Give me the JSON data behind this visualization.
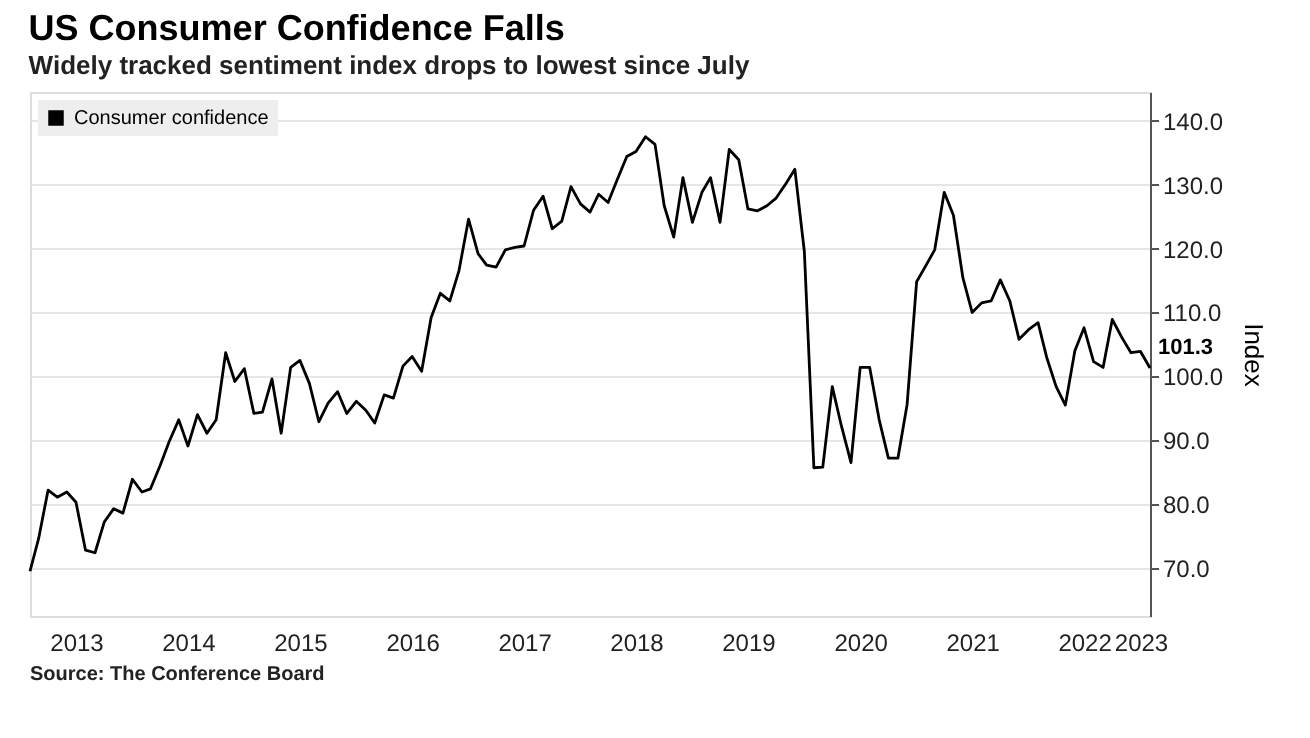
{
  "chart_data": {
    "type": "line",
    "title": "US Consumer Confidence Falls",
    "subtitle": "Widely tracked sentiment index drops to lowest since July",
    "ylabel": "Index",
    "xlim": [
      "2013-02-01",
      "2023-02-01"
    ],
    "xticks": [
      {
        "value": "2013-07-01",
        "label": "2013"
      },
      {
        "value": "2014-07-01",
        "label": "2014"
      },
      {
        "value": "2015-07-01",
        "label": "2015"
      },
      {
        "value": "2016-07-01",
        "label": "2016"
      },
      {
        "value": "2017-07-01",
        "label": "2017"
      },
      {
        "value": "2018-07-01",
        "label": "2018"
      },
      {
        "value": "2019-07-01",
        "label": "2019"
      },
      {
        "value": "2020-07-01",
        "label": "2020"
      },
      {
        "value": "2021-07-01",
        "label": "2021"
      },
      {
        "value": "2022-07-01",
        "label": "2022"
      },
      {
        "value": "2023-01-01",
        "label": "2023"
      }
    ],
    "ylim": [
      62.5,
      144.5
    ],
    "yticks": [
      {
        "value": 70,
        "label": "70.0"
      },
      {
        "value": 80,
        "label": "80.0"
      },
      {
        "value": 90,
        "label": "90.0"
      },
      {
        "value": 100,
        "label": "100.0"
      },
      {
        "value": 110,
        "label": "110.0"
      },
      {
        "value": 120,
        "label": "120.0"
      },
      {
        "value": 130,
        "label": "130.0"
      },
      {
        "value": 140,
        "label": "140.0"
      }
    ],
    "x": [
      "2013-02",
      "2013-03",
      "2013-04",
      "2013-05",
      "2013-06",
      "2013-07",
      "2013-08",
      "2013-09",
      "2013-10",
      "2013-11",
      "2013-12",
      "2014-01",
      "2014-02",
      "2014-03",
      "2014-04",
      "2014-05",
      "2014-06",
      "2014-07",
      "2014-08",
      "2014-09",
      "2014-10",
      "2014-11",
      "2014-12",
      "2015-01",
      "2015-02",
      "2015-03",
      "2015-04",
      "2015-05",
      "2015-06",
      "2015-07",
      "2015-08",
      "2015-09",
      "2015-10",
      "2015-11",
      "2015-12",
      "2016-01",
      "2016-02",
      "2016-03",
      "2016-04",
      "2016-05",
      "2016-06",
      "2016-07",
      "2016-08",
      "2016-09",
      "2016-10",
      "2016-11",
      "2016-12",
      "2017-01",
      "2017-02",
      "2017-03",
      "2017-04",
      "2017-05",
      "2017-06",
      "2017-07",
      "2017-08",
      "2017-09",
      "2017-10",
      "2017-11",
      "2017-12",
      "2018-01",
      "2018-02",
      "2018-03",
      "2018-04",
      "2018-05",
      "2018-06",
      "2018-07",
      "2018-08",
      "2018-09",
      "2018-10",
      "2018-11",
      "2018-12",
      "2019-01",
      "2019-02",
      "2019-03",
      "2019-04",
      "2019-05",
      "2019-06",
      "2019-07",
      "2019-08",
      "2019-09",
      "2019-10",
      "2019-11",
      "2019-12",
      "2020-01",
      "2020-02",
      "2020-03",
      "2020-04",
      "2020-05",
      "2020-06",
      "2020-07",
      "2020-08",
      "2020-09",
      "2020-10",
      "2020-11",
      "2020-12",
      "2021-01",
      "2021-02",
      "2021-03",
      "2021-04",
      "2021-05",
      "2021-06",
      "2021-07",
      "2021-08",
      "2021-09",
      "2021-10",
      "2021-11",
      "2021-12",
      "2022-01",
      "2022-02",
      "2022-03",
      "2022-04",
      "2022-05",
      "2022-06",
      "2022-07",
      "2022-08",
      "2022-09",
      "2022-10",
      "2022-11",
      "2022-12",
      "2023-01",
      "2023-02"
    ],
    "grid": "y",
    "legend": "top left",
    "marker": "none",
    "line_style": "solid",
    "series": [
      {
        "name": "Consumer confidence",
        "color": "#000000",
        "values": [
          69.5,
          74.6,
          82.2,
          81.1,
          81.9,
          80.3,
          72.8,
          72.4,
          77.2,
          79.3,
          78.6,
          83.9,
          81.9,
          82.4,
          86.0,
          89.8,
          93.2,
          89.1,
          94.0,
          91.1,
          93.2,
          103.7,
          99.2,
          101.2,
          94.2,
          94.4,
          99.6,
          91.1,
          101.4,
          102.5,
          98.9,
          92.9,
          95.8,
          97.6,
          94.2,
          96.1,
          94.7,
          92.7,
          97.1,
          96.6,
          101.6,
          103.1,
          100.8,
          109.2,
          113.0,
          111.8,
          116.6,
          124.6,
          119.2,
          117.4,
          117.1,
          119.8,
          120.2,
          120.4,
          126.0,
          128.2,
          123.1,
          124.3,
          129.7,
          127.0,
          125.7,
          128.5,
          127.2,
          130.8,
          134.4,
          135.2,
          137.5,
          136.3,
          126.7,
          121.8,
          131.1,
          124.1,
          128.8,
          131.1,
          124.1,
          135.5,
          133.9,
          126.2,
          125.9,
          126.7,
          127.9,
          130.1,
          132.4,
          119.5,
          85.7,
          85.8,
          98.4,
          92.2,
          86.5,
          101.4,
          101.4,
          93.2,
          87.2,
          87.2,
          95.6,
          114.8,
          117.4,
          119.8,
          128.8,
          125.2,
          115.4,
          110.0,
          111.5,
          111.8,
          115.1,
          111.8,
          105.8,
          107.3,
          108.4,
          103.0,
          98.4,
          95.5,
          104.0,
          107.6,
          102.3,
          101.4,
          108.9,
          106.1,
          103.7,
          103.9,
          101.3
        ]
      }
    ],
    "annotations": [
      {
        "text": "101.3",
        "x": "2023-02-01",
        "y": 101.3
      },
      "Source: The Conference Board"
    ]
  }
}
